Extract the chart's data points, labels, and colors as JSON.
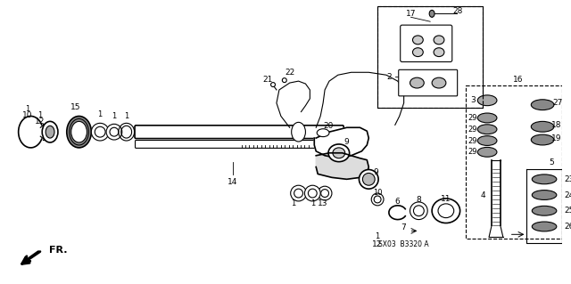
{
  "bg": "#ffffff",
  "fig_width": 6.4,
  "fig_height": 3.19,
  "dpi": 100,
  "diagram_code": "SX03  B3320 A"
}
